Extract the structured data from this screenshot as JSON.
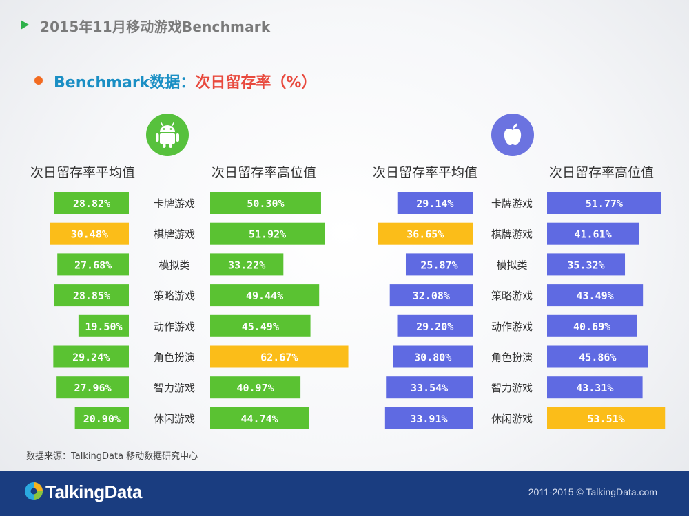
{
  "header": {
    "title": "2015年11月移动游戏Benchmark"
  },
  "subtitle": {
    "part1": "Benchmark数据：",
    "part2": "次日留存率（%）"
  },
  "columns": {
    "avg_label": "次日留存率平均值",
    "high_label": "次日留存率高位值"
  },
  "source": "数据来源：TalkingData 移动数据研究中心",
  "footer": {
    "brand": "TalkingData",
    "copyright": "2011-2015 © TalkingData.com"
  },
  "colors": {
    "android": "#5ac232",
    "ios": "#5f6ae2",
    "highlight": "#fbbd19",
    "header_arrow": "#2eb14a",
    "bullet": "#f26b21",
    "subtitle_blue": "#1b8fc4",
    "subtitle_red": "#e8493d",
    "footer_bg": "#1a3d80"
  },
  "icons": {
    "android": "android-icon",
    "ios": "apple-icon"
  },
  "chart_data": [
    {
      "type": "bar",
      "platform": "Android",
      "categories": [
        "卡牌游戏",
        "棋牌游戏",
        "模拟类",
        "策略游戏",
        "动作游戏",
        "角色扮演",
        "智力游戏",
        "休闲游戏"
      ],
      "series": [
        {
          "name": "次日留存率平均值",
          "values": [
            28.82,
            30.48,
            27.68,
            28.85,
            19.5,
            29.24,
            27.96,
            20.9
          ],
          "labels": [
            "28.82%",
            "30.48%",
            "27.68%",
            "28.85%",
            "19.50%",
            "29.24%",
            "27.96%",
            "20.90%"
          ],
          "highlight_index": 1
        },
        {
          "name": "次日留存率高位值",
          "values": [
            50.3,
            51.92,
            33.22,
            49.44,
            45.49,
            62.67,
            40.97,
            44.74
          ],
          "labels": [
            "50.30%",
            "51.92%",
            "33.22%",
            "49.44%",
            "45.49%",
            "62.67%",
            "40.97%",
            "44.74%"
          ],
          "highlight_index": 5
        }
      ]
    },
    {
      "type": "bar",
      "platform": "iOS",
      "categories": [
        "卡牌游戏",
        "棋牌游戏",
        "模拟类",
        "策略游戏",
        "动作游戏",
        "角色扮演",
        "智力游戏",
        "休闲游戏"
      ],
      "series": [
        {
          "name": "次日留存率平均值",
          "values": [
            29.14,
            36.65,
            25.87,
            32.08,
            29.2,
            30.8,
            33.54,
            33.91
          ],
          "labels": [
            "29.14%",
            "36.65%",
            "25.87%",
            "32.08%",
            "29.20%",
            "30.80%",
            "33.54%",
            "33.91%"
          ],
          "highlight_index": 1
        },
        {
          "name": "次日留存率高位值",
          "values": [
            51.77,
            41.61,
            35.32,
            43.49,
            40.69,
            45.86,
            43.31,
            53.51
          ],
          "labels": [
            "51.77%",
            "41.61%",
            "35.32%",
            "43.49%",
            "40.69%",
            "45.86%",
            "43.31%",
            "53.51%"
          ],
          "highlight_index": 7
        }
      ]
    }
  ]
}
